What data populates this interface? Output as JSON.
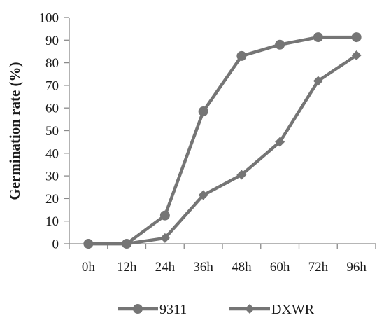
{
  "chart_data": {
    "type": "line",
    "title": "",
    "xlabel": "",
    "ylabel": "Germination rate (%)",
    "categories": [
      "0h",
      "12h",
      "24h",
      "36h",
      "48h",
      "60h",
      "72h",
      "96h"
    ],
    "ylim": [
      0,
      100
    ],
    "yticks": [
      0,
      10,
      20,
      30,
      40,
      50,
      60,
      70,
      80,
      90,
      100
    ],
    "grid": false,
    "legend": "bottom",
    "series": [
      {
        "name": "9311",
        "marker": "circle",
        "color": "#757575",
        "values": [
          0,
          0,
          12.5,
          58.5,
          83,
          88,
          91.3,
          91.3
        ]
      },
      {
        "name": "DXWR",
        "marker": "diamond",
        "color": "#757575",
        "values": [
          0,
          0,
          2.5,
          21.5,
          30.5,
          45,
          72,
          83.3
        ]
      }
    ]
  }
}
